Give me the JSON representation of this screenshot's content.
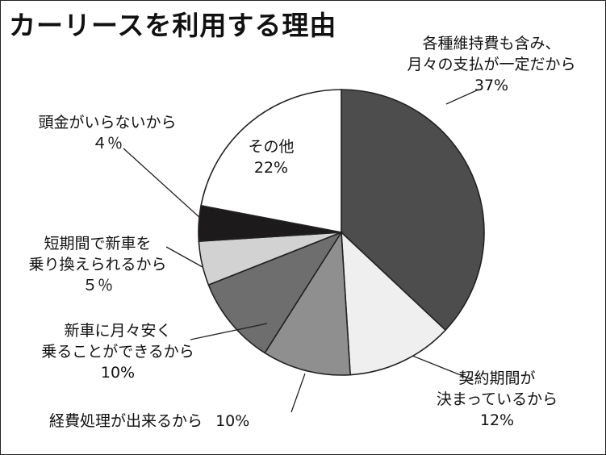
{
  "chart_data": {
    "type": "pie",
    "title": "カーリースを利用する理由",
    "start_angle_deg": 0,
    "direction": "clockwise",
    "outline": "#222222",
    "slices": [
      {
        "lines": [
          "各種維持費も含み、",
          "月々の支払が一定だから"
        ],
        "value": 37,
        "value_label": "37%",
        "color": "#4d4d4d"
      },
      {
        "lines": [
          "契約期間が",
          "決まっているから"
        ],
        "value": 12,
        "value_label": "12%",
        "color": "#efefef"
      },
      {
        "lines": [
          "経費処理が出来るから"
        ],
        "value": 10,
        "value_label": "10%",
        "color": "#8f8f8f"
      },
      {
        "lines": [
          "新車に月々安く",
          "乗ることができるから"
        ],
        "value": 10,
        "value_label": "10%",
        "color": "#6e6e6e"
      },
      {
        "lines": [
          "短期間で新車を",
          "乗り換えられるから"
        ],
        "value": 5,
        "value_label": "５％",
        "color": "#d2d2d2"
      },
      {
        "lines": [
          "頭金がいらないから"
        ],
        "value": 4,
        "value_label": "４％",
        "color": "#1c1a1b"
      },
      {
        "lines": [
          "その他"
        ],
        "value": 22,
        "value_label": "22%",
        "color": "#ffffff"
      }
    ]
  }
}
